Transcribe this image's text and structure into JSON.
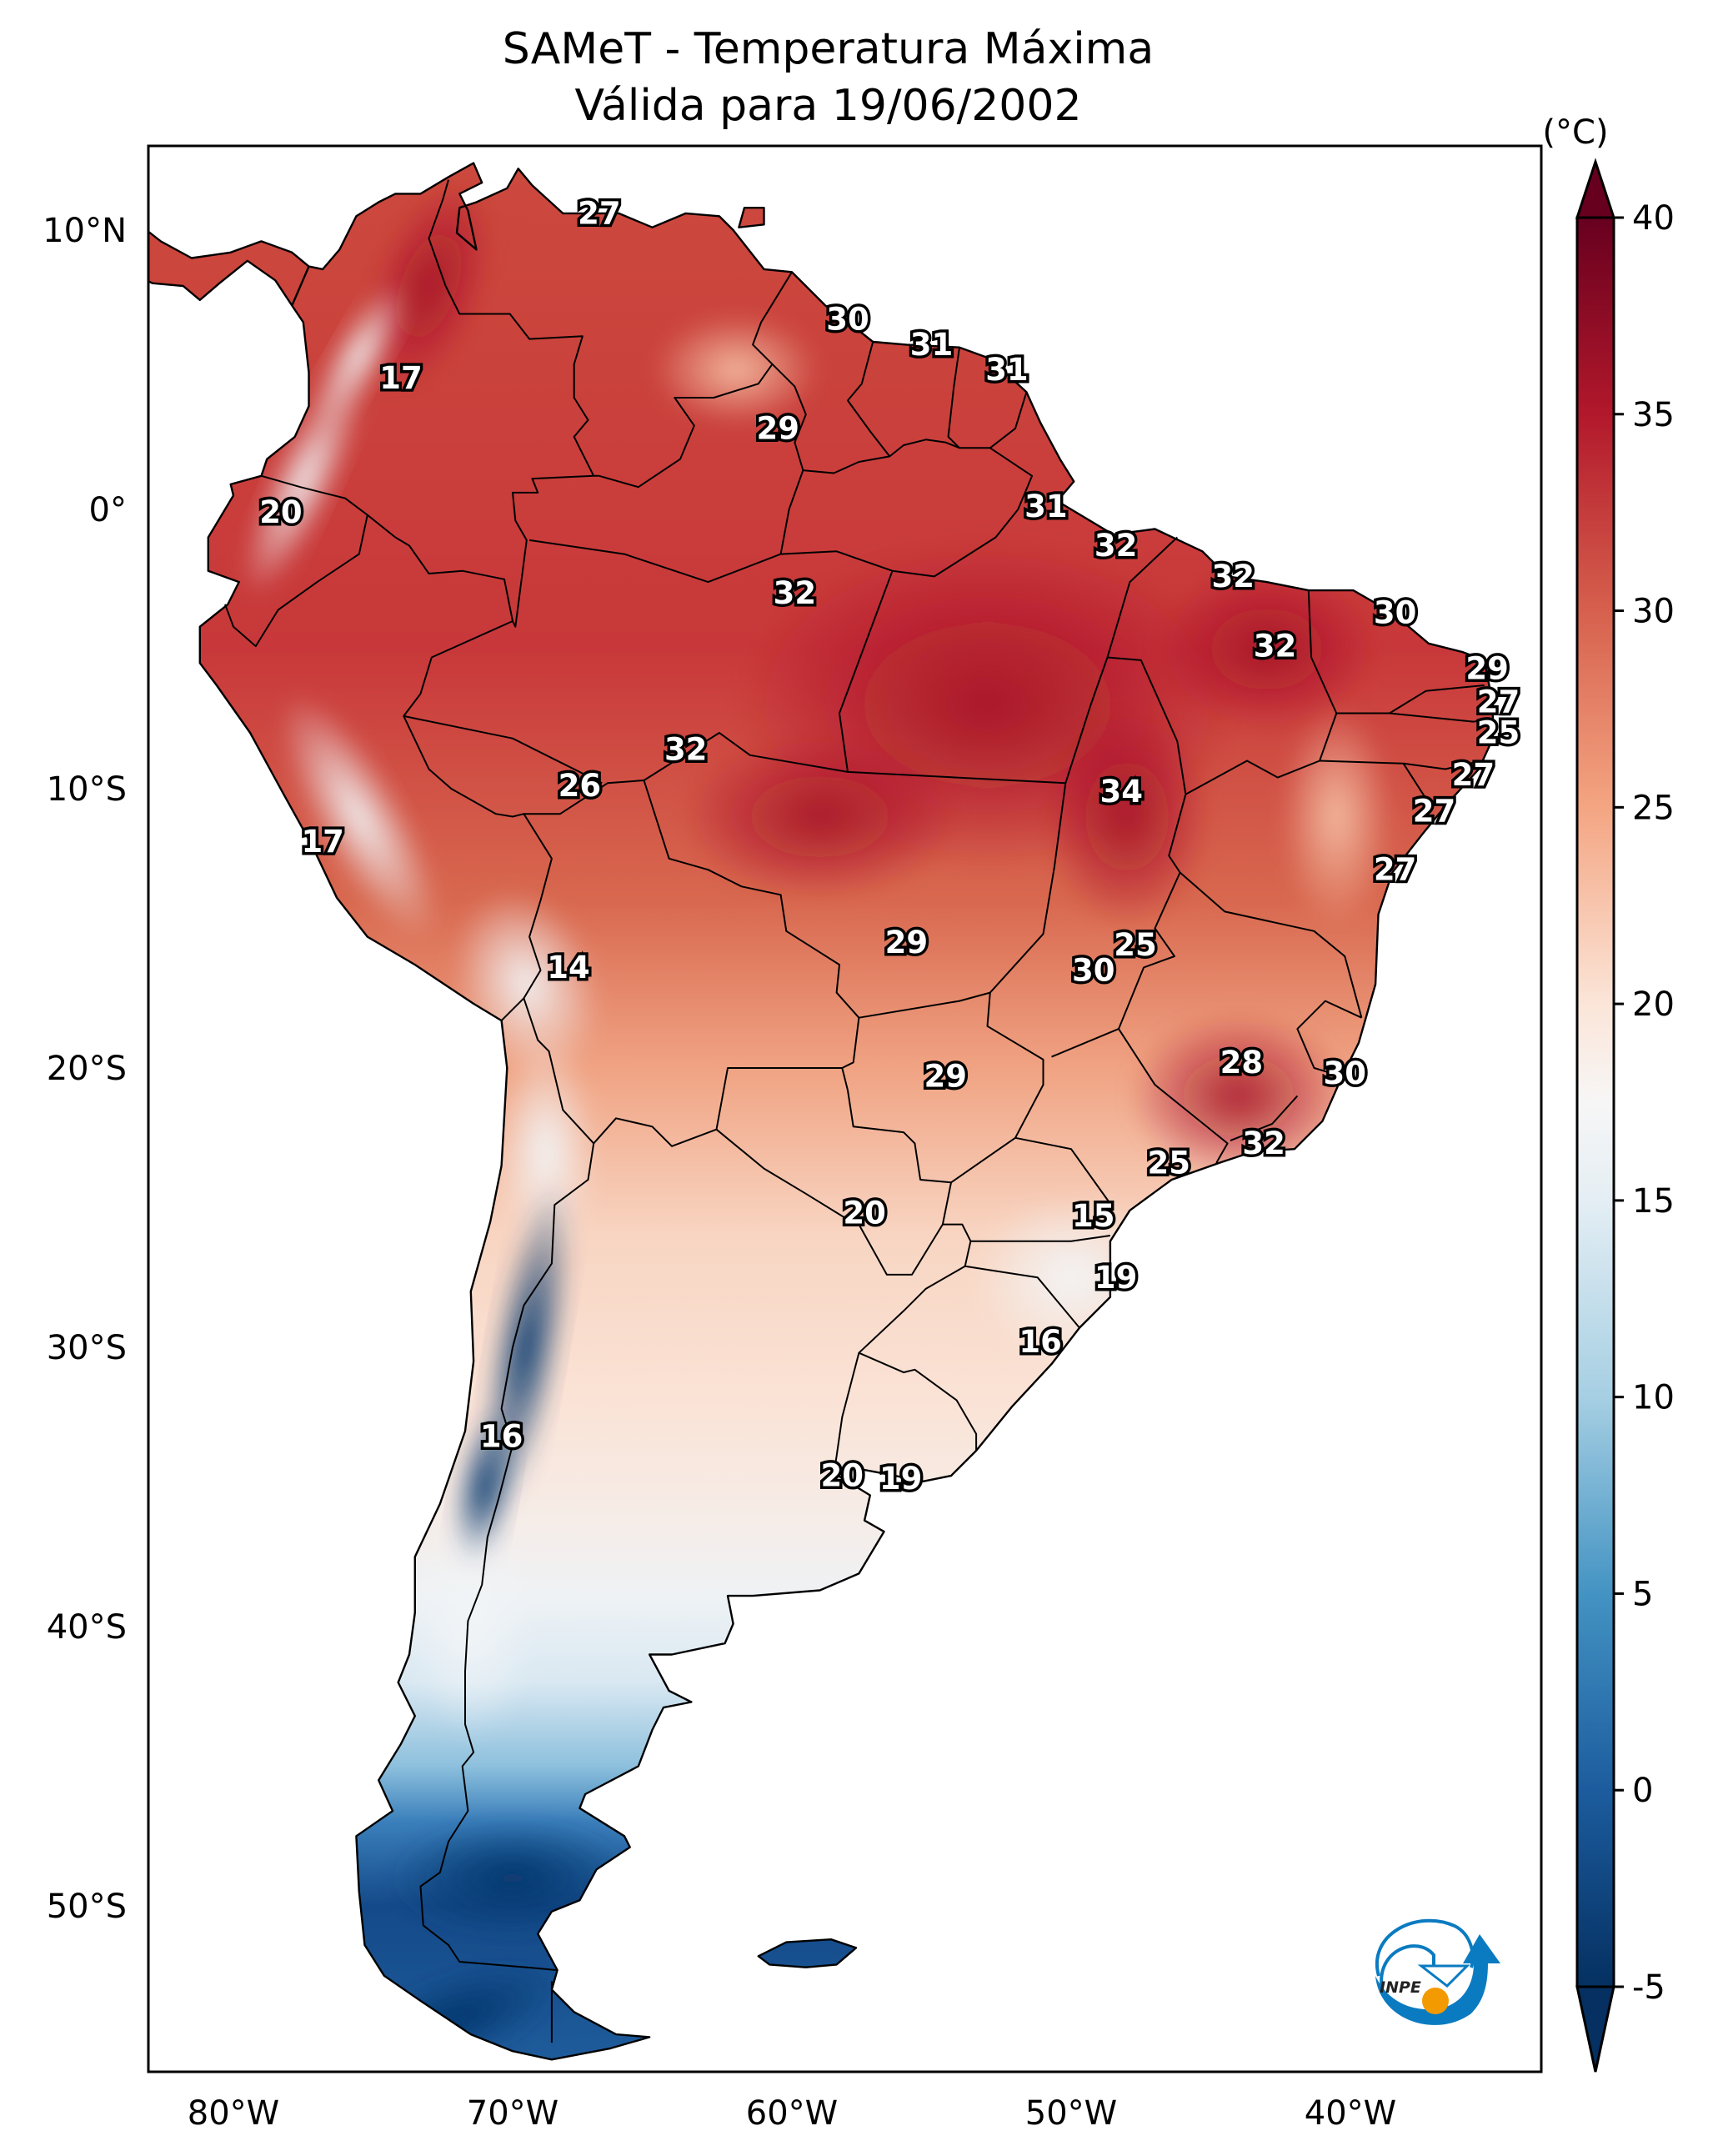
{
  "title": {
    "line1": "SAMeT - Temperatura Máxima",
    "line2": "Válida para 19/06/2002"
  },
  "chart_data": {
    "type": "heatmap",
    "title": "SAMeT - Temperatura Máxima",
    "subtitle": "Válida para 19/06/2002",
    "variable": "Maximum temperature",
    "region": "South America",
    "extent": {
      "lon": [
        -83,
        -33
      ],
      "lat": [
        -56,
        13.2
      ]
    },
    "x_ticks": [
      {
        "value": -80,
        "label": "80°W"
      },
      {
        "value": -70,
        "label": "70°W"
      },
      {
        "value": -60,
        "label": "60°W"
      },
      {
        "value": -50,
        "label": "50°W"
      },
      {
        "value": -40,
        "label": "40°W"
      }
    ],
    "y_ticks": [
      {
        "value": 10,
        "label": "10°N"
      },
      {
        "value": 0,
        "label": "0°"
      },
      {
        "value": -10,
        "label": "10°S"
      },
      {
        "value": -20,
        "label": "20°S"
      },
      {
        "value": -30,
        "label": "30°S"
      },
      {
        "value": -40,
        "label": "40°S"
      },
      {
        "value": -50,
        "label": "50°S"
      }
    ],
    "colorbar": {
      "label": "(°C)",
      "colormap": "RdBu_r",
      "range": [
        -5,
        40
      ],
      "extend": "both",
      "ticks": [
        40,
        35,
        30,
        25,
        20,
        15,
        10,
        5,
        0,
        -5
      ],
      "tick_labels": [
        "40",
        "35",
        "30",
        "25",
        "20",
        "15",
        "10",
        "5",
        "0",
        "-5"
      ],
      "colors": {
        "-5": "#053061",
        "0": "#1c5c9e",
        "5": "#4393c3",
        "10": "#a6cfe3",
        "15": "#e4eef4",
        "17.5": "#f7f6f6",
        "20": "#fbe5d8",
        "25": "#f4a582",
        "30": "#d6604d",
        "35": "#b2182b",
        "40": "#67001f"
      }
    },
    "contour_labels": [
      {
        "value": 27,
        "lon": -66.9,
        "lat": 10.6
      },
      {
        "value": 30,
        "lon": -58.0,
        "lat": 6.8
      },
      {
        "value": 31,
        "lon": -55.0,
        "lat": 5.9
      },
      {
        "value": 31,
        "lon": -52.3,
        "lat": 5.0
      },
      {
        "value": 29,
        "lon": -60.5,
        "lat": 2.9
      },
      {
        "value": 17,
        "lon": -74.0,
        "lat": 4.7
      },
      {
        "value": 20,
        "lon": -78.3,
        "lat": -0.1
      },
      {
        "value": 31,
        "lon": -50.9,
        "lat": 0.1
      },
      {
        "value": 32,
        "lon": -48.4,
        "lat": -1.3
      },
      {
        "value": 32,
        "lon": -44.2,
        "lat": -2.4
      },
      {
        "value": 32,
        "lon": -59.9,
        "lat": -3.0
      },
      {
        "value": 30,
        "lon": -38.4,
        "lat": -3.7
      },
      {
        "value": 32,
        "lon": -42.7,
        "lat": -4.9
      },
      {
        "value": 29,
        "lon": -35.1,
        "lat": -5.7
      },
      {
        "value": 27,
        "lon": -34.7,
        "lat": -6.9
      },
      {
        "value": 25,
        "lon": -34.7,
        "lat": -8.0
      },
      {
        "value": 32,
        "lon": -63.8,
        "lat": -8.6
      },
      {
        "value": 26,
        "lon": -67.6,
        "lat": -9.9
      },
      {
        "value": 34,
        "lon": -48.2,
        "lat": -10.1
      },
      {
        "value": 27,
        "lon": -35.6,
        "lat": -9.5
      },
      {
        "value": 27,
        "lon": -37.0,
        "lat": -10.8
      },
      {
        "value": 17,
        "lon": -76.8,
        "lat": -11.9
      },
      {
        "value": 27,
        "lon": -38.4,
        "lat": -12.9
      },
      {
        "value": 14,
        "lon": -68.0,
        "lat": -16.4
      },
      {
        "value": 29,
        "lon": -55.9,
        "lat": -15.5
      },
      {
        "value": 25,
        "lon": -47.7,
        "lat": -15.6
      },
      {
        "value": 30,
        "lon": -49.2,
        "lat": -16.5
      },
      {
        "value": 29,
        "lon": -54.5,
        "lat": -20.3
      },
      {
        "value": 28,
        "lon": -43.9,
        "lat": -19.8
      },
      {
        "value": 30,
        "lon": -40.2,
        "lat": -20.2
      },
      {
        "value": 32,
        "lon": -43.1,
        "lat": -22.7
      },
      {
        "value": 25,
        "lon": -46.5,
        "lat": -23.4
      },
      {
        "value": 20,
        "lon": -57.4,
        "lat": -25.2
      },
      {
        "value": 15,
        "lon": -49.2,
        "lat": -25.3
      },
      {
        "value": 19,
        "lon": -48.4,
        "lat": -27.5
      },
      {
        "value": 16,
        "lon": -51.1,
        "lat": -29.8
      },
      {
        "value": 16,
        "lon": -70.4,
        "lat": -33.2
      },
      {
        "value": 20,
        "lon": -58.2,
        "lat": -34.6
      },
      {
        "value": 19,
        "lon": -56.1,
        "lat": -34.7
      }
    ]
  },
  "logo": {
    "text": "INPE",
    "name": "inpe-logo"
  }
}
